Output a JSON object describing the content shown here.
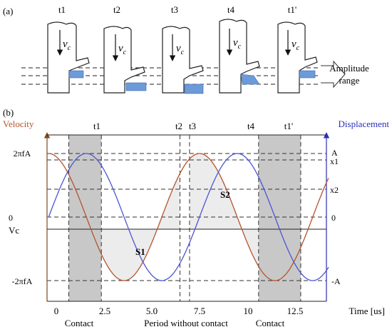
{
  "panel_a": {
    "label": "(a)",
    "stage_labels": [
      "t1",
      "t2",
      "t3",
      "t4",
      "t1'"
    ],
    "velocity_symbol": "v",
    "velocity_subscript": "c",
    "amplitude_label": [
      "Amplitude",
      "range"
    ]
  },
  "panel_b": {
    "label": "(b)",
    "left_axis_title": "Velocity",
    "right_axis_title": "Displacement",
    "left_ticks": [
      "2πfA",
      "0",
      "Vc",
      "-2πfA"
    ],
    "right_ticks": [
      "A",
      "x1",
      "x2",
      "0",
      "-A"
    ],
    "top_markers": [
      "t1",
      "t2",
      "t3",
      "t4",
      "t1'"
    ],
    "x_ticks": [
      "0",
      "2.5",
      "5.0",
      "7.5",
      "10",
      "12.5"
    ],
    "x_axis_title": "Time [us]",
    "area_labels": [
      "S1",
      "S2"
    ],
    "region_labels": [
      "Contact",
      "Period without contact",
      "Contact"
    ],
    "colors": {
      "velocity": "#b5542c",
      "displacement": "#4b55d6",
      "contact_band": "#c8c8c8",
      "area_fill": "#e9e9e9",
      "tool_tip": "#5b8fd0"
    }
  },
  "chart_data": {
    "type": "line",
    "xlabel": "Time [us]",
    "x_range": [
      -1.0,
      14.5
    ],
    "left_ylabel": "Velocity",
    "right_ylabel": "Displacement",
    "series": [
      {
        "name": "Velocity",
        "axis": "left",
        "x": [
          -0.4,
          1.57,
          3.54,
          5.5,
          7.47,
          9.44,
          11.4,
          13.37,
          14.2
        ],
        "y_note": "units of 2πfA",
        "y": [
          1,
          0,
          -1,
          0,
          1,
          0,
          -1,
          0,
          0.6
        ]
      },
      {
        "name": "Displacement",
        "axis": "right",
        "x": [
          -0.4,
          1.57,
          3.54,
          5.5,
          7.47,
          9.44,
          11.4,
          13.37,
          14.2
        ],
        "y_note": "units of A",
        "y": [
          0,
          1,
          0,
          -1,
          0,
          1,
          0,
          -1,
          -0.8
        ]
      }
    ],
    "events": {
      "t1": 2.35,
      "t2": 6.45,
      "t3": 6.95,
      "t4": 10.55,
      "t1'": 12.75
    },
    "contact_intervals": [
      [
        0.65,
        2.35
      ],
      [
        10.55,
        12.75
      ]
    ]
  }
}
